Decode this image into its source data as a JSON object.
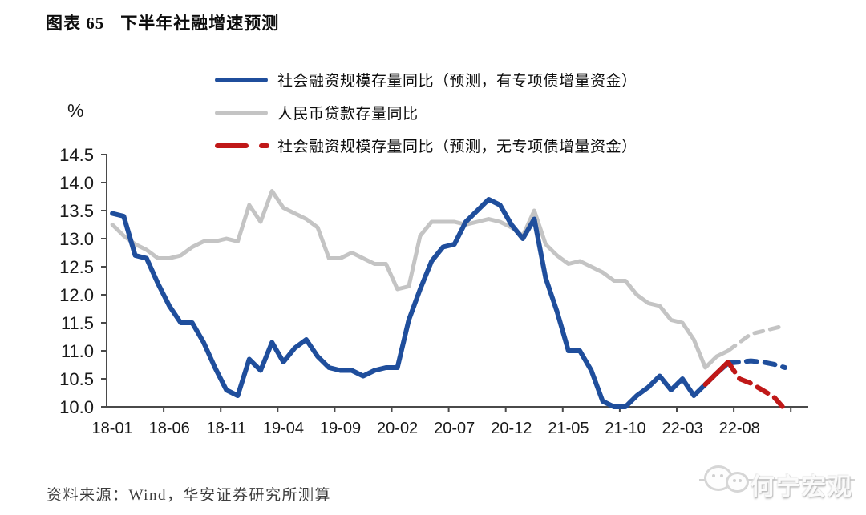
{
  "title": {
    "prefix": "图表 65",
    "text": "下半年社融增速预测"
  },
  "axis_unit": "%",
  "legend": [
    {
      "label": "社会融资规模存量同比（预测，有专项债增量资金）",
      "color": "#1F4E9C",
      "style": "solid"
    },
    {
      "label": "人民币贷款存量同比",
      "color": "#C4C4C4",
      "style": "solid"
    },
    {
      "label": "社会融资规模存量同比（预测，无专项债增量资金）",
      "color": "#C01818",
      "style": "dashed"
    }
  ],
  "source": "资料来源：Wind，华安证券研究所测算",
  "watermark": "何宁宏观",
  "chart_data": {
    "type": "line",
    "title": "下半年社融增速预测",
    "ylabel": "%",
    "ylim": [
      10.0,
      14.5
    ],
    "ytick_step": 0.5,
    "grid": false,
    "legend_position": "top",
    "y_tick_labels": [
      "10.0",
      "10.5",
      "11.0",
      "11.5",
      "12.0",
      "12.5",
      "13.0",
      "13.5",
      "14.0",
      "14.5"
    ],
    "x_tick_labels": [
      "18-01",
      "18-06",
      "18-11",
      "19-04",
      "19-09",
      "20-02",
      "20-07",
      "20-12",
      "21-05",
      "21-10",
      "22-03",
      "22-08"
    ],
    "x_tick_every": 5,
    "months": [
      "18-01",
      "18-02",
      "18-03",
      "18-04",
      "18-05",
      "18-06",
      "18-07",
      "18-08",
      "18-09",
      "18-10",
      "18-11",
      "18-12",
      "19-01",
      "19-02",
      "19-03",
      "19-04",
      "19-05",
      "19-06",
      "19-07",
      "19-08",
      "19-09",
      "19-10",
      "19-11",
      "19-12",
      "20-01",
      "20-02",
      "20-03",
      "20-04",
      "20-05",
      "20-06",
      "20-07",
      "20-08",
      "20-09",
      "20-10",
      "20-11",
      "20-12",
      "21-01",
      "21-02",
      "21-03",
      "21-04",
      "21-05",
      "21-06",
      "21-07",
      "21-08",
      "21-09",
      "21-10",
      "21-11",
      "21-12",
      "22-01",
      "22-02",
      "22-03",
      "22-04",
      "22-05",
      "22-06",
      "22-07",
      "22-08",
      "22-09",
      "22-10",
      "22-11",
      "22-12"
    ],
    "series": [
      {
        "name": "社会融资规模存量同比（预测，有专项债增量资金）",
        "color": "#1F4E9C",
        "stroke_width": 6,
        "start_index": 0,
        "solid_until_index": 54,
        "values": [
          13.45,
          13.4,
          12.7,
          12.65,
          12.2,
          11.8,
          11.5,
          11.5,
          11.15,
          10.7,
          10.3,
          10.2,
          10.85,
          10.65,
          11.15,
          10.8,
          11.05,
          11.2,
          10.9,
          10.7,
          10.65,
          10.65,
          10.55,
          10.65,
          10.7,
          10.7,
          11.55,
          12.1,
          12.6,
          12.85,
          12.9,
          13.3,
          13.5,
          13.7,
          13.6,
          13.25,
          13.0,
          13.35,
          12.3,
          11.7,
          11.0,
          11.0,
          10.65,
          10.1,
          10.0,
          10.0,
          10.2,
          10.35,
          10.55,
          10.3,
          10.5,
          10.2,
          10.4,
          10.6,
          10.78,
          10.8,
          10.82,
          10.8,
          10.76,
          10.7
        ]
      },
      {
        "name": "人民币贷款存量同比",
        "color": "#C4C4C4",
        "stroke_width": 5,
        "start_index": 0,
        "solid_until_index": 54,
        "values": [
          13.25,
          13.05,
          12.9,
          12.8,
          12.65,
          12.65,
          12.7,
          12.85,
          12.95,
          12.95,
          13.0,
          12.95,
          13.6,
          13.3,
          13.85,
          13.55,
          13.45,
          13.35,
          13.2,
          12.65,
          12.65,
          12.75,
          12.65,
          12.55,
          12.55,
          12.1,
          12.15,
          13.05,
          13.3,
          13.3,
          13.3,
          13.25,
          13.3,
          13.35,
          13.3,
          13.2,
          13.05,
          13.5,
          12.9,
          12.7,
          12.55,
          12.6,
          12.5,
          12.4,
          12.25,
          12.25,
          12.0,
          11.85,
          11.8,
          11.55,
          11.5,
          11.2,
          10.7,
          10.9,
          11.0,
          11.15,
          11.3,
          11.35,
          11.4,
          11.45
        ]
      },
      {
        "name": "社会融资规模存量同比（预测，无专项债增量资金）",
        "color": "#C01818",
        "stroke_width": 6,
        "start_index": 52,
        "solid_until_index": 54,
        "values": [
          10.4,
          10.6,
          10.8,
          10.5,
          10.42,
          10.3,
          10.18,
          9.95
        ]
      }
    ]
  }
}
